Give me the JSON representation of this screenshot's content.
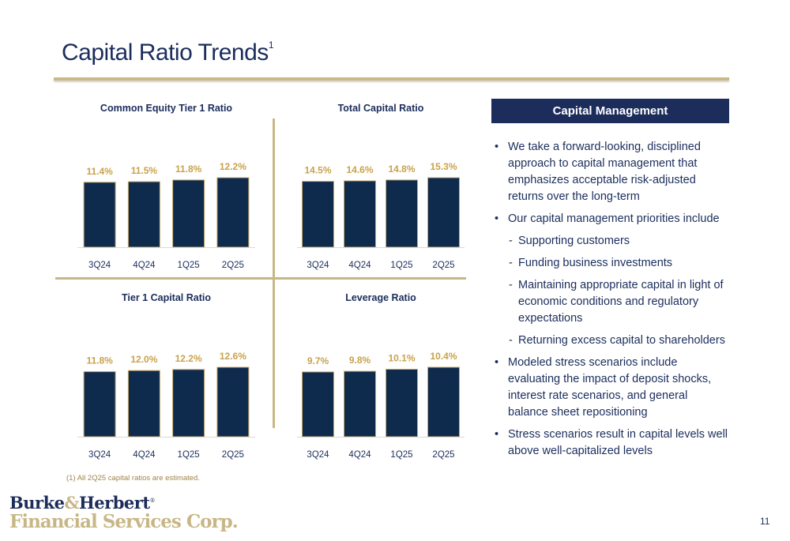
{
  "title": "Capital Ratio Trends",
  "title_superscript": "1",
  "colors": {
    "bar": "#0e2a4d",
    "bar_outline": "#c8a96a",
    "value_label": "#c9a24a",
    "title": "#1b2d5c",
    "accent": "#c8b786"
  },
  "chart_data": [
    {
      "type": "bar",
      "title": "Common Equity Tier 1 Ratio",
      "categories": [
        "3Q24",
        "4Q24",
        "1Q25",
        "2Q25"
      ],
      "values": [
        11.4,
        11.5,
        11.8,
        12.2
      ],
      "labels": [
        "11.4%",
        "11.5%",
        "11.8%",
        "12.2%"
      ],
      "ylim": [
        0,
        12.2
      ],
      "grid": false
    },
    {
      "type": "bar",
      "title": "Total Capital Ratio",
      "categories": [
        "3Q24",
        "4Q24",
        "1Q25",
        "2Q25"
      ],
      "values": [
        14.5,
        14.6,
        14.8,
        15.3
      ],
      "labels": [
        "14.5%",
        "14.6%",
        "14.8%",
        "15.3%"
      ],
      "ylim": [
        0,
        15.3
      ],
      "grid": false
    },
    {
      "type": "bar",
      "title": "Tier 1 Capital Ratio",
      "categories": [
        "3Q24",
        "4Q24",
        "1Q25",
        "2Q25"
      ],
      "values": [
        11.8,
        12.0,
        12.2,
        12.6
      ],
      "labels": [
        "11.8%",
        "12.0%",
        "12.2%",
        "12.6%"
      ],
      "ylim": [
        0,
        12.6
      ],
      "grid": false
    },
    {
      "type": "bar",
      "title": "Leverage Ratio",
      "categories": [
        "3Q24",
        "4Q24",
        "1Q25",
        "2Q25"
      ],
      "values": [
        9.7,
        9.8,
        10.1,
        10.4
      ],
      "labels": [
        "9.7%",
        "9.8%",
        "10.1%",
        "10.4%"
      ],
      "ylim": [
        0,
        10.4
      ],
      "grid": false
    }
  ],
  "panel": {
    "header": "Capital Management",
    "bullets": [
      "We take a forward-looking, disciplined approach to capital management that emphasizes acceptable risk-adjusted returns over the long-term",
      "Our capital management priorities include"
    ],
    "sub_bullets": [
      "Supporting customers",
      "Funding business investments",
      "Maintaining appropriate capital in light of economic conditions and regulatory expectations",
      "Returning excess capital to shareholders"
    ],
    "bullets_after": [
      "Modeled stress scenarios include evaluating the impact of deposit shocks, interest rate scenarios, and general balance sheet repositioning",
      "Stress scenarios result in capital levels well above well-capitalized levels"
    ]
  },
  "footnote": "(1) All 2Q25 capital ratios are estimated.",
  "logo": {
    "name_part1": "Burke",
    "ampersand": "&",
    "name_part2": "Herbert",
    "registered": "®",
    "line2": "Financial Services Corp."
  },
  "page_number": "11"
}
